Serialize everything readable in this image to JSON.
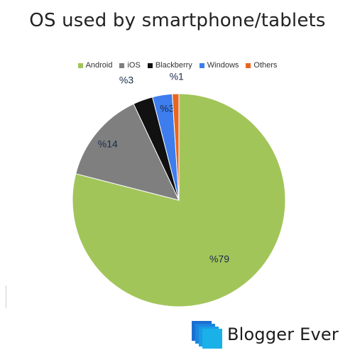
{
  "chart_data": {
    "type": "pie",
    "title": "OS used by smartphone/tablets",
    "legend_position": "top",
    "slices": [
      {
        "name": "Android",
        "value": 79,
        "label": "%79",
        "color": "#a2c55a"
      },
      {
        "name": "iOS",
        "value": 14,
        "label": "%14",
        "color": "#7f7f7f"
      },
      {
        "name": "Blackberry",
        "value": 3,
        "label": "%3",
        "color": "#111111"
      },
      {
        "name": "Windows",
        "value": 3,
        "label": "%3",
        "color": "#3d7ded"
      },
      {
        "name": "Others",
        "value": 1,
        "label": "%1",
        "color": "#e8661f"
      }
    ]
  },
  "logo": {
    "text": "Blogger Ever",
    "color": "#1ab0e8"
  }
}
